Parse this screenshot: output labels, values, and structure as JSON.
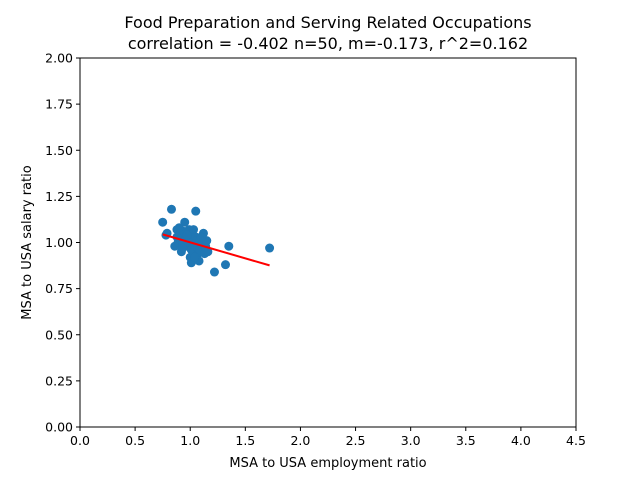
{
  "chart_data": {
    "type": "scatter",
    "title": "Food Preparation and Serving Related Occupations",
    "subtitle": "correlation = -0.402 n=50, m=-0.173, r^2=0.162",
    "xlabel": "MSA to USA employment ratio",
    "ylabel": "MSA to USA salary ratio",
    "xlim": [
      0,
      4.5
    ],
    "ylim": [
      0,
      2.0
    ],
    "x_ticks": [
      "0.0",
      "0.5",
      "1.0",
      "1.5",
      "2.0",
      "2.5",
      "3.0",
      "3.5",
      "4.0",
      "4.5"
    ],
    "y_ticks": [
      "0.00",
      "0.25",
      "0.50",
      "0.75",
      "1.00",
      "1.25",
      "1.50",
      "1.75",
      "2.00"
    ],
    "grid": false,
    "point_color": "#1f77b4",
    "fit_color": "#ff0000",
    "series": [
      {
        "points": [
          [
            0.75,
            1.11
          ],
          [
            0.78,
            1.04
          ],
          [
            0.79,
            1.05
          ],
          [
            0.83,
            1.18
          ],
          [
            0.86,
            0.98
          ],
          [
            0.88,
            1.07
          ],
          [
            0.88,
            1.03
          ],
          [
            0.89,
            1.0
          ],
          [
            0.9,
            1.05
          ],
          [
            0.91,
            1.02
          ],
          [
            0.92,
            0.95
          ],
          [
            0.93,
            1.0
          ],
          [
            0.94,
            1.06
          ],
          [
            0.95,
            1.11
          ],
          [
            0.96,
            1.03
          ],
          [
            0.97,
            0.98
          ],
          [
            0.98,
            1.0
          ],
          [
            0.99,
            1.07
          ],
          [
            1.0,
            0.92
          ],
          [
            1.0,
            1.02
          ],
          [
            1.01,
            0.96
          ],
          [
            1.01,
            0.89
          ],
          [
            1.02,
            1.04
          ],
          [
            1.02,
            1.0
          ],
          [
            1.03,
            0.95
          ],
          [
            1.03,
            1.07
          ],
          [
            1.04,
            0.98
          ],
          [
            1.05,
            1.03
          ],
          [
            1.05,
            1.17
          ],
          [
            1.06,
            0.93
          ],
          [
            1.06,
            1.01
          ],
          [
            1.07,
            0.97
          ],
          [
            1.08,
            0.9
          ],
          [
            1.08,
            1.0
          ],
          [
            1.09,
            0.96
          ],
          [
            1.1,
            0.99
          ],
          [
            1.12,
            1.05
          ],
          [
            1.13,
            0.94
          ],
          [
            1.14,
            0.98
          ],
          [
            1.15,
            1.01
          ],
          [
            1.16,
            0.95
          ],
          [
            0.97,
            1.04
          ],
          [
            0.93,
            0.97
          ],
          [
            1.04,
            0.92
          ],
          [
            0.9,
            1.08
          ],
          [
            1.22,
            0.84
          ],
          [
            1.32,
            0.88
          ],
          [
            1.35,
            0.98
          ],
          [
            1.72,
            0.97
          ],
          [
            1.1,
            1.03
          ]
        ]
      }
    ],
    "fit_line": {
      "x": [
        0.75,
        1.72
      ],
      "y": [
        1.044,
        0.876
      ]
    }
  }
}
